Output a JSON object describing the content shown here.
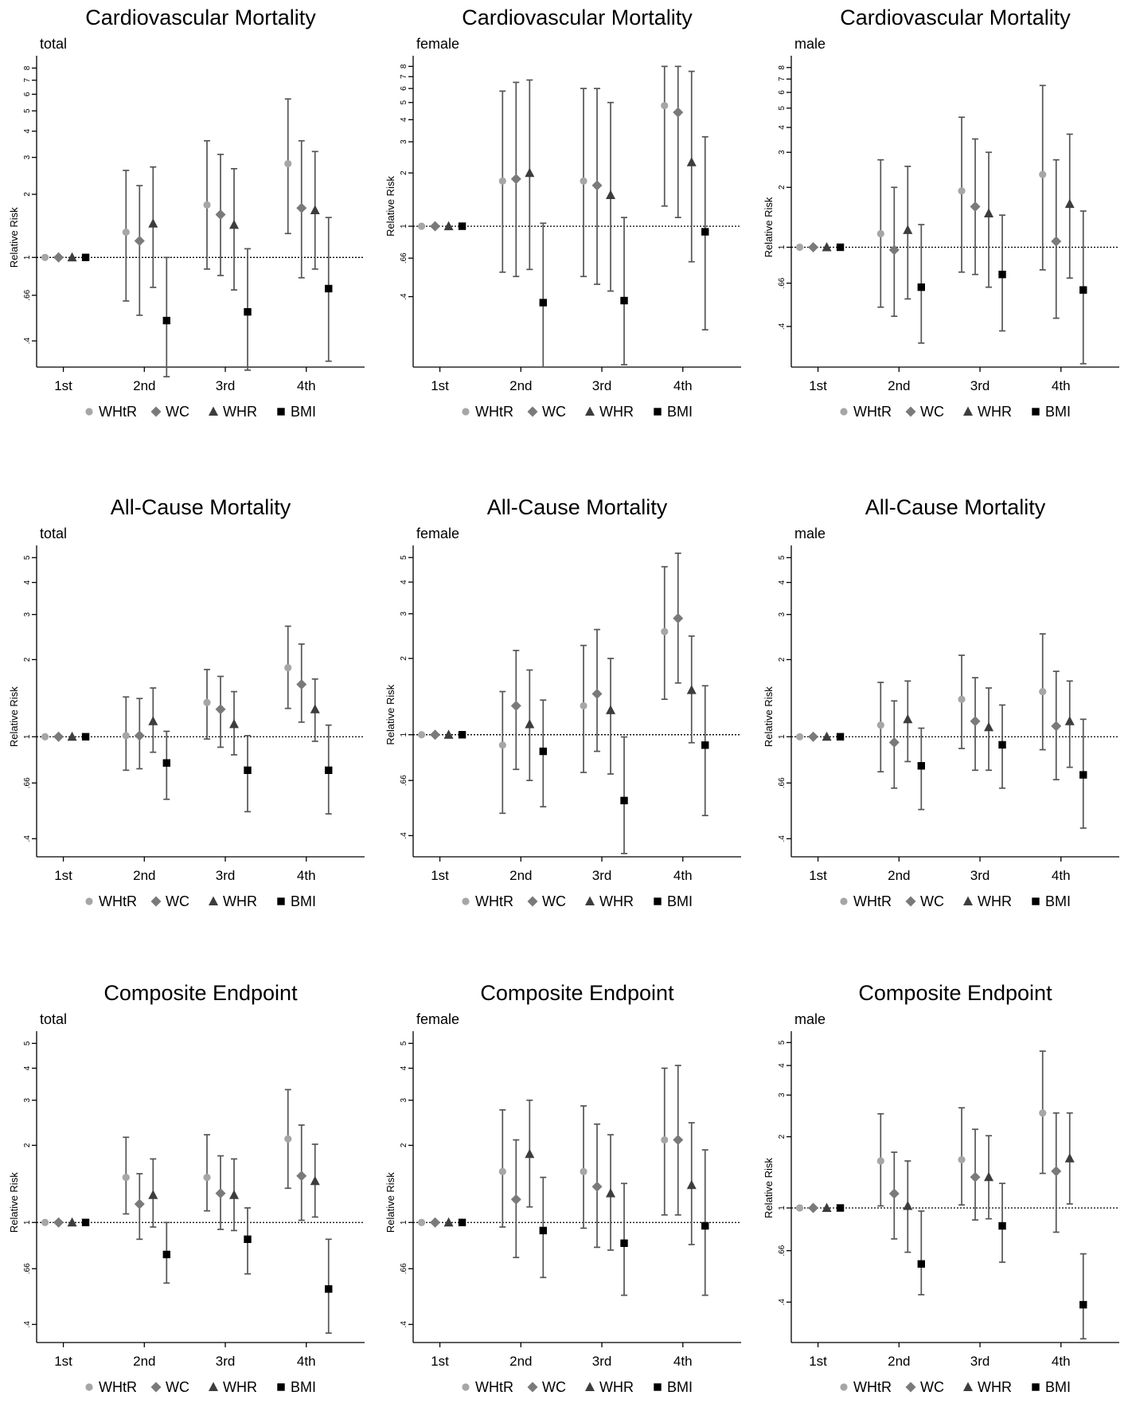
{
  "legend": [
    {
      "name": "WHtR",
      "marker": "circle",
      "color": "#a6a6a6"
    },
    {
      "name": "WC",
      "marker": "diamond",
      "color": "#7a7a7a"
    },
    {
      "name": "WHR",
      "marker": "triangle",
      "color": "#3d3d3d"
    },
    {
      "name": "BMI",
      "marker": "square",
      "color": "#000000"
    }
  ],
  "ylabel": "Relative Risk",
  "categories": [
    "1st",
    "2nd",
    "3rd",
    "4th"
  ],
  "chart_data": [
    {
      "type": "scatter",
      "title": "Cardiovascular Mortality",
      "subtitle": "total",
      "ylabel": "Relative Risk",
      "yscale": "log",
      "ylim": [
        0.3,
        9
      ],
      "yticks": [
        ".4",
        ".66",
        "1",
        "2",
        "3",
        "4",
        "5",
        "6",
        "7",
        "8"
      ],
      "reference_line": 1,
      "categories": [
        "1st",
        "2nd",
        "3rd",
        "4th"
      ],
      "series": [
        {
          "name": "WHtR",
          "values": [
            1,
            1.32,
            1.78,
            2.8
          ],
          "ci_low": [
            null,
            0.62,
            0.88,
            1.3
          ],
          "ci_high": [
            null,
            2.6,
            3.6,
            5.7
          ]
        },
        {
          "name": "WC",
          "values": [
            1,
            1.2,
            1.6,
            1.72
          ],
          "ci_low": [
            null,
            0.53,
            0.82,
            0.8
          ],
          "ci_high": [
            null,
            2.2,
            3.1,
            3.6
          ]
        },
        {
          "name": "WHR",
          "values": [
            1,
            1.45,
            1.43,
            1.68
          ],
          "ci_low": [
            null,
            0.72,
            0.7,
            0.88
          ],
          "ci_high": [
            null,
            2.7,
            2.65,
            3.2
          ]
        },
        {
          "name": "BMI",
          "values": [
            1,
            0.5,
            0.55,
            0.71
          ],
          "ci_low": [
            null,
            0.27,
            0.29,
            0.32
          ],
          "ci_high": [
            null,
            1,
            1.1,
            1.55
          ]
        }
      ]
    },
    {
      "type": "scatter",
      "title": "Cardiovascular Mortality",
      "subtitle": "female",
      "ylabel": "Relative Risk",
      "yscale": "log",
      "ylim": [
        0.16,
        9
      ],
      "yticks": [
        ".4",
        ".66",
        "1",
        "2",
        "3",
        "4",
        "5",
        "6",
        "7",
        "8"
      ],
      "reference_line": 1,
      "categories": [
        "1st",
        "2nd",
        "3rd",
        "4th"
      ],
      "series": [
        {
          "name": "WHtR",
          "values": [
            1,
            1.8,
            1.8,
            4.8
          ],
          "ci_low": [
            null,
            0.55,
            0.52,
            1.3
          ],
          "ci_high": [
            null,
            5.8,
            6,
            8
          ]
        },
        {
          "name": "WC",
          "values": [
            1,
            1.85,
            1.7,
            4.4
          ],
          "ci_low": [
            null,
            0.52,
            0.47,
            1.12
          ],
          "ci_high": [
            null,
            6.5,
            6,
            8
          ]
        },
        {
          "name": "WHR",
          "values": [
            1,
            2,
            1.5,
            2.3
          ],
          "ci_low": [
            null,
            0.57,
            0.43,
            0.63
          ],
          "ci_high": [
            null,
            6.7,
            5,
            7.5
          ]
        },
        {
          "name": "BMI",
          "values": [
            1,
            0.37,
            0.38,
            0.93
          ],
          "ci_low": [
            null,
            0.16,
            0.165,
            0.26
          ],
          "ci_high": [
            null,
            1.04,
            1.12,
            3.2
          ]
        }
      ]
    },
    {
      "type": "scatter",
      "title": "Cardiovascular Mortality",
      "subtitle": "male",
      "ylabel": "Relative Risk",
      "yscale": "log",
      "ylim": [
        0.25,
        9
      ],
      "yticks": [
        ".4",
        ".66",
        "1",
        "2",
        "3",
        "4",
        "5",
        "6",
        "7",
        "8"
      ],
      "reference_line": 1,
      "categories": [
        "1st",
        "2nd",
        "3rd",
        "4th"
      ],
      "series": [
        {
          "name": "WHtR",
          "values": [
            1,
            1.17,
            1.92,
            2.32
          ],
          "ci_low": [
            null,
            0.5,
            0.75,
            0.77
          ],
          "ci_high": [
            null,
            2.75,
            4.5,
            6.5
          ]
        },
        {
          "name": "WC",
          "values": [
            1,
            0.97,
            1.6,
            1.07
          ],
          "ci_low": [
            null,
            0.45,
            0.73,
            0.44
          ],
          "ci_high": [
            null,
            2,
            3.5,
            2.75
          ]
        },
        {
          "name": "WHR",
          "values": [
            1,
            1.22,
            1.48,
            1.65
          ],
          "ci_low": [
            null,
            0.55,
            0.63,
            0.7
          ],
          "ci_high": [
            null,
            2.55,
            3,
            3.7
          ]
        },
        {
          "name": "BMI",
          "values": [
            1,
            0.63,
            0.73,
            0.61
          ],
          "ci_low": [
            null,
            0.33,
            0.38,
            0.26
          ],
          "ci_high": [
            null,
            1.3,
            1.45,
            1.52
          ]
        }
      ]
    },
    {
      "type": "scatter",
      "title": "All-Cause Mortality",
      "subtitle": "total",
      "ylabel": "Relative Risk",
      "yscale": "log",
      "ylim": [
        0.34,
        5.5
      ],
      "yticks": [
        ".4",
        ".66",
        "1",
        "2",
        "3",
        "4",
        "5"
      ],
      "reference_line": 1,
      "categories": [
        "1st",
        "2nd",
        "3rd",
        "4th"
      ],
      "series": [
        {
          "name": "WHtR",
          "values": [
            1,
            1.01,
            1.36,
            1.86
          ],
          "ci_low": [
            null,
            0.74,
            0.98,
            1.29
          ],
          "ci_high": [
            null,
            1.43,
            1.83,
            2.7
          ]
        },
        {
          "name": "WC",
          "values": [
            1,
            1.01,
            1.28,
            1.6
          ],
          "ci_low": [
            null,
            0.75,
            0.91,
            1.14
          ],
          "ci_high": [
            null,
            1.41,
            1.72,
            2.3
          ]
        },
        {
          "name": "WHR",
          "values": [
            1,
            1.15,
            1.12,
            1.28
          ],
          "ci_low": [
            null,
            0.87,
            0.85,
            0.96
          ],
          "ci_high": [
            null,
            1.55,
            1.5,
            1.68
          ]
        },
        {
          "name": "BMI",
          "values": [
            1,
            0.79,
            0.74,
            0.74
          ],
          "ci_low": [
            null,
            0.57,
            0.51,
            0.5
          ],
          "ci_high": [
            null,
            1.05,
            1.01,
            1.11
          ]
        }
      ]
    },
    {
      "type": "scatter",
      "title": "All-Cause Mortality",
      "subtitle": "female",
      "ylabel": "Relative Risk",
      "yscale": "log",
      "ylim": [
        0.33,
        5.5
      ],
      "yticks": [
        ".4",
        ".66",
        "1",
        "2",
        "3",
        "4",
        "5"
      ],
      "reference_line": 1,
      "categories": [
        "1st",
        "2nd",
        "3rd",
        "4th"
      ],
      "series": [
        {
          "name": "WHtR",
          "values": [
            1,
            0.91,
            1.3,
            2.55
          ],
          "ci_low": [
            null,
            0.49,
            0.71,
            1.38
          ],
          "ci_high": [
            null,
            1.48,
            2.25,
            4.6
          ]
        },
        {
          "name": "WC",
          "values": [
            1,
            1.3,
            1.45,
            2.88
          ],
          "ci_low": [
            null,
            0.73,
            0.86,
            1.6
          ],
          "ci_high": [
            null,
            2.15,
            2.6,
            5.2
          ]
        },
        {
          "name": "WHR",
          "values": [
            1,
            1.1,
            1.25,
            1.5
          ],
          "ci_low": [
            null,
            0.66,
            0.7,
            0.93
          ],
          "ci_high": [
            null,
            1.8,
            2,
            2.45
          ]
        },
        {
          "name": "BMI",
          "values": [
            1,
            0.86,
            0.55,
            0.91
          ],
          "ci_low": [
            null,
            0.52,
            0.34,
            0.48
          ],
          "ci_high": [
            null,
            1.37,
            0.98,
            1.56
          ]
        }
      ]
    },
    {
      "type": "scatter",
      "title": "All-Cause Mortality",
      "subtitle": "male",
      "ylabel": "Relative Risk",
      "yscale": "log",
      "ylim": [
        0.34,
        5.5
      ],
      "yticks": [
        ".4",
        ".66",
        "1",
        "2",
        "3",
        "4",
        "5"
      ],
      "reference_line": 1,
      "categories": [
        "1st",
        "2nd",
        "3rd",
        "4th"
      ],
      "series": [
        {
          "name": "WHtR",
          "values": [
            1,
            1.11,
            1.4,
            1.5
          ],
          "ci_low": [
            null,
            0.73,
            0.9,
            0.89
          ],
          "ci_high": [
            null,
            1.63,
            2.08,
            2.52
          ]
        },
        {
          "name": "WC",
          "values": [
            1,
            0.95,
            1.15,
            1.1
          ],
          "ci_low": [
            null,
            0.63,
            0.74,
            0.68
          ],
          "ci_high": [
            null,
            1.38,
            1.7,
            1.8
          ]
        },
        {
          "name": "WHR",
          "values": [
            1,
            1.17,
            1.09,
            1.15
          ],
          "ci_low": [
            null,
            0.8,
            0.74,
            0.76
          ],
          "ci_high": [
            null,
            1.65,
            1.55,
            1.65
          ]
        },
        {
          "name": "BMI",
          "values": [
            1,
            0.77,
            0.93,
            0.71
          ],
          "ci_low": [
            null,
            0.52,
            0.63,
            0.44
          ],
          "ci_high": [
            null,
            1.08,
            1.33,
            1.17
          ]
        }
      ]
    },
    {
      "type": "scatter",
      "title": "Composite Endpoint",
      "subtitle": "total",
      "ylabel": "Relative Risk",
      "yscale": "log",
      "ylim": [
        0.34,
        5.5
      ],
      "yticks": [
        ".4",
        ".66",
        "1",
        "2",
        "3",
        "4",
        "5"
      ],
      "reference_line": 1,
      "categories": [
        "1st",
        "2nd",
        "3rd",
        "4th"
      ],
      "series": [
        {
          "name": "WHtR",
          "values": [
            1,
            1.5,
            1.5,
            2.12
          ],
          "ci_low": [
            null,
            1.08,
            1.11,
            1.36
          ],
          "ci_high": [
            null,
            2.15,
            2.2,
            3.3
          ]
        },
        {
          "name": "WC",
          "values": [
            1,
            1.18,
            1.3,
            1.52
          ],
          "ci_low": [
            null,
            0.86,
            0.94,
            1.02
          ],
          "ci_high": [
            null,
            1.55,
            1.82,
            2.4
          ]
        },
        {
          "name": "WHR",
          "values": [
            1,
            1.28,
            1.28,
            1.45
          ],
          "ci_low": [
            null,
            0.96,
            0.93,
            1.05
          ],
          "ci_high": [
            null,
            1.77,
            1.77,
            2.02
          ]
        },
        {
          "name": "BMI",
          "values": [
            1,
            0.75,
            0.86,
            0.55
          ],
          "ci_low": [
            null,
            0.58,
            0.63,
            0.37
          ],
          "ci_high": [
            null,
            1,
            1.14,
            0.86
          ]
        }
      ]
    },
    {
      "type": "scatter",
      "title": "Composite Endpoint",
      "subtitle": "female",
      "ylabel": "Relative Risk",
      "yscale": "log",
      "ylim": [
        0.34,
        5.5
      ],
      "yticks": [
        ".4",
        ".66",
        "1",
        "2",
        "3",
        "4",
        "5"
      ],
      "reference_line": 1,
      "categories": [
        "1st",
        "2nd",
        "3rd",
        "4th"
      ],
      "series": [
        {
          "name": "WHtR",
          "values": [
            1,
            1.58,
            1.58,
            2.1
          ],
          "ci_low": [
            null,
            0.96,
            0.95,
            1.07
          ],
          "ci_high": [
            null,
            2.75,
            2.85,
            4
          ]
        },
        {
          "name": "WC",
          "values": [
            1,
            1.23,
            1.38,
            2.1
          ],
          "ci_low": [
            null,
            0.73,
            0.8,
            1.07
          ],
          "ci_high": [
            null,
            2.1,
            2.42,
            4.1
          ]
        },
        {
          "name": "WHR",
          "values": [
            1,
            1.85,
            1.3,
            1.4
          ],
          "ci_low": [
            null,
            1.15,
            0.78,
            0.82
          ],
          "ci_high": [
            null,
            3,
            2.2,
            2.45
          ]
        },
        {
          "name": "BMI",
          "values": [
            1,
            0.93,
            0.83,
            0.97
          ],
          "ci_low": [
            null,
            0.61,
            0.52,
            0.52
          ],
          "ci_high": [
            null,
            1.5,
            1.42,
            1.92
          ]
        }
      ]
    },
    {
      "type": "scatter",
      "title": "Composite Endpoint",
      "subtitle": "male",
      "ylabel": "Relative Risk",
      "yscale": "log",
      "ylim": [
        0.27,
        5.5
      ],
      "yticks": [
        ".4",
        ".66",
        "1",
        "2",
        "3",
        "4",
        "5"
      ],
      "reference_line": 1,
      "categories": [
        "1st",
        "2nd",
        "3rd",
        "4th"
      ],
      "series": [
        {
          "name": "WHtR",
          "values": [
            1,
            1.58,
            1.6,
            2.52
          ],
          "ci_low": [
            null,
            1.02,
            1.03,
            1.4
          ],
          "ci_high": [
            null,
            2.5,
            2.65,
            4.6
          ]
        },
        {
          "name": "WC",
          "values": [
            1,
            1.15,
            1.35,
            1.43
          ],
          "ci_low": [
            null,
            0.74,
            0.89,
            0.79
          ],
          "ci_high": [
            null,
            1.72,
            2.15,
            2.52
          ]
        },
        {
          "name": "WHR",
          "values": [
            1,
            1.02,
            1.35,
            1.62
          ],
          "ci_low": [
            null,
            0.65,
            0.9,
            1.04
          ],
          "ci_high": [
            null,
            1.58,
            2.02,
            2.52
          ]
        },
        {
          "name": "BMI",
          "values": [
            1,
            0.58,
            0.84,
            0.39
          ],
          "ci_low": [
            null,
            0.43,
            0.59,
            0.28
          ],
          "ci_high": [
            null,
            0.97,
            1.27,
            0.64
          ]
        }
      ]
    }
  ]
}
